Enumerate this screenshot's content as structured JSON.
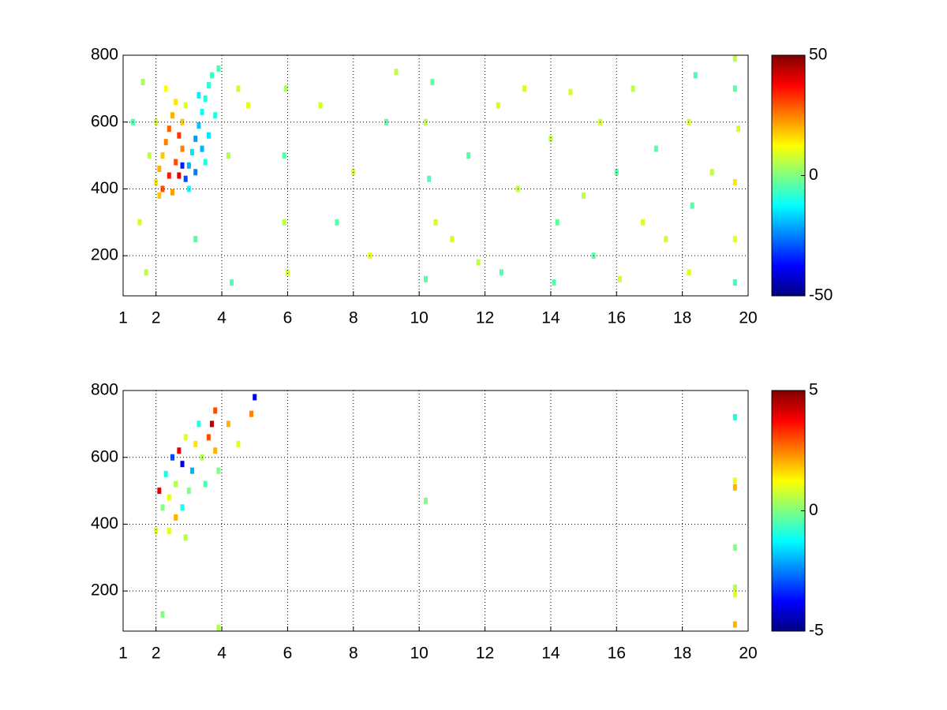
{
  "chart_data": [
    {
      "type": "heatmap",
      "colormap": "jet",
      "grid": true,
      "xlim": [
        1,
        20
      ],
      "ylim": [
        80,
        800
      ],
      "clim": [
        -50,
        50
      ],
      "xticks": [
        1,
        2,
        4,
        6,
        8,
        10,
        12,
        14,
        16,
        18,
        20
      ],
      "yticks": [
        200,
        400,
        600,
        800
      ],
      "cticks": [
        -50,
        0,
        50
      ],
      "x": [
        2.0,
        2.1,
        2.2,
        2.3,
        2.4,
        2.5,
        2.6,
        2.2,
        2.4,
        2.6,
        2.8,
        2.7,
        2.5,
        2.3,
        2.1,
        2.7,
        2.8,
        2.9,
        2.0,
        1.8,
        2.9,
        3.0,
        3.1,
        3.2,
        3.3,
        3.4,
        3.5,
        3.6,
        3.0,
        3.2,
        3.4,
        3.6,
        3.8,
        3.7,
        3.9,
        3.3,
        3.5,
        2.8,
        1.3,
        1.5,
        1.7,
        4.2,
        4.5,
        4.8,
        1.6,
        3.2,
        4.3,
        5.9,
        5.9,
        6.0,
        5.95,
        7.0,
        7.5,
        8.0,
        8.5,
        9.0,
        9.3,
        10.2,
        10.3,
        10.2,
        10.5,
        10.4,
        11.0,
        11.5,
        11.8,
        12.4,
        12.5,
        13.0,
        13.2,
        14.1,
        14.0,
        14.2,
        14.6,
        15.0,
        15.3,
        15.5,
        16.0,
        16.1,
        16.5,
        16.8,
        17.2,
        17.5,
        18.2,
        18.3,
        18.2,
        18.4,
        18.9,
        19.6,
        19.6,
        19.6,
        19.7,
        19.6,
        19.6
      ],
      "y": [
        420,
        460,
        500,
        540,
        580,
        620,
        660,
        400,
        440,
        480,
        520,
        560,
        390,
        700,
        380,
        440,
        600,
        650,
        600,
        500,
        430,
        470,
        510,
        550,
        590,
        630,
        670,
        710,
        400,
        450,
        520,
        560,
        620,
        740,
        760,
        680,
        480,
        470,
        600,
        300,
        150,
        500,
        700,
        650,
        720,
        250,
        120,
        300,
        500,
        150,
        700,
        650,
        300,
        450,
        200,
        600,
        750,
        130,
        430,
        600,
        300,
        720,
        250,
        500,
        180,
        650,
        150,
        400,
        700,
        120,
        550,
        300,
        690,
        380,
        200,
        600,
        450,
        130,
        700,
        300,
        520,
        250,
        150,
        350,
        600,
        740,
        450,
        120,
        250,
        420,
        580,
        700,
        790
      ],
      "values": [
        15,
        20,
        18,
        25,
        28,
        20,
        15,
        30,
        35,
        30,
        25,
        32,
        22,
        12,
        18,
        40,
        18,
        10,
        8,
        6,
        -30,
        -20,
        -15,
        -22,
        -18,
        -12,
        -10,
        -8,
        -12,
        -25,
        -20,
        -15,
        -10,
        -6,
        -5,
        -14,
        -10,
        -35,
        -5,
        8,
        6,
        5,
        8,
        10,
        4,
        -4,
        -5,
        6,
        -4,
        8,
        4,
        8,
        -4,
        8,
        10,
        -4,
        6,
        -4,
        -5,
        6,
        8,
        -3,
        8,
        -4,
        6,
        8,
        -4,
        6,
        8,
        -4,
        6,
        -3,
        8,
        6,
        -4,
        8,
        -4,
        8,
        6,
        8,
        -4,
        8,
        10,
        -4,
        8,
        -5,
        6,
        -6,
        10,
        15,
        8,
        -4,
        6
      ]
    },
    {
      "type": "heatmap",
      "colormap": "jet",
      "grid": true,
      "xlim": [
        1,
        20
      ],
      "ylim": [
        80,
        800
      ],
      "clim": [
        -5,
        5
      ],
      "xticks": [
        1,
        2,
        4,
        6,
        8,
        10,
        12,
        14,
        16,
        18,
        20
      ],
      "yticks": [
        200,
        400,
        600,
        800
      ],
      "cticks": [
        -5,
        0,
        5
      ],
      "x": [
        2.0,
        2.1,
        2.2,
        2.3,
        2.4,
        2.5,
        2.6,
        2.7,
        2.8,
        2.9,
        2.6,
        2.8,
        3.0,
        3.1,
        3.2,
        3.3,
        3.4,
        3.5,
        3.6,
        3.7,
        3.8,
        3.8,
        3.9,
        2.4,
        2.9,
        4.2,
        4.5,
        5.0,
        4.9,
        10.2,
        19.6,
        19.6,
        19.6,
        19.6,
        19.6,
        19.6,
        19.6,
        2.2,
        3.9
      ],
      "y": [
        380,
        500,
        450,
        550,
        480,
        600,
        520,
        620,
        580,
        660,
        420,
        450,
        500,
        560,
        640,
        700,
        600,
        520,
        660,
        700,
        620,
        740,
        560,
        380,
        360,
        700,
        640,
        780,
        730,
        470,
        720,
        530,
        510,
        330,
        210,
        190,
        100,
        130,
        90
      ],
      "values": [
        1,
        4,
        0,
        -1,
        1,
        -3,
        0.5,
        4,
        -4,
        1,
        2,
        -1,
        0,
        -2,
        1.5,
        -1,
        0.5,
        -0.5,
        3,
        4.5,
        2,
        3,
        0,
        1,
        0.5,
        2,
        1,
        -4,
        2.5,
        0,
        -1,
        1,
        2,
        0,
        0.5,
        1,
        2,
        0,
        0.5
      ]
    }
  ]
}
